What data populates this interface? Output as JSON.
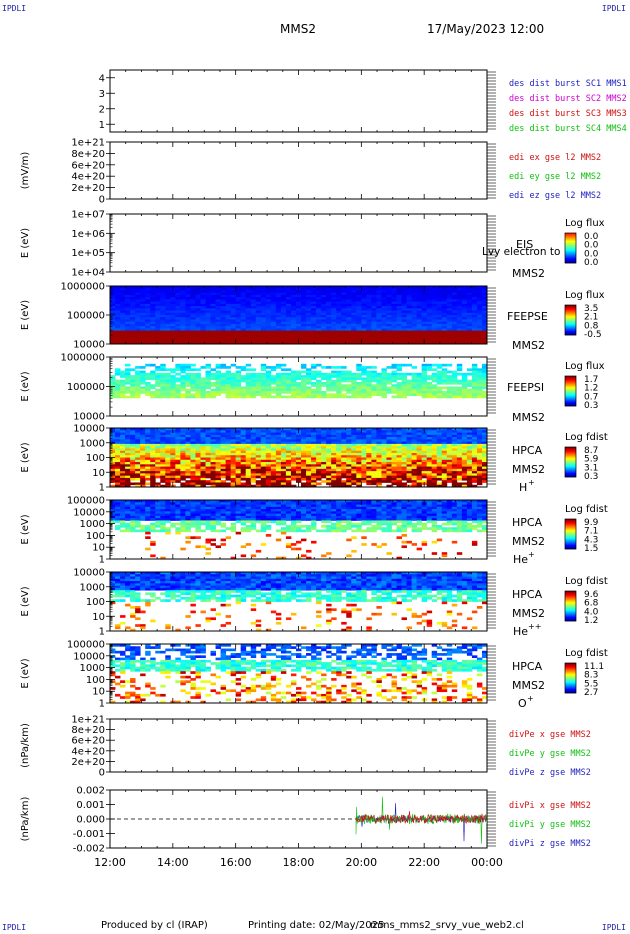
{
  "header": {
    "corner_tl": "IPDLI",
    "corner_tr": "IPDLI",
    "corner_bl": "IPDLI",
    "corner_br": "IPDLI",
    "spacecraft": "MMS2",
    "datetime": "17/May/2023 12:00"
  },
  "footer": {
    "produced": "Produced by cl (IRAP)",
    "printing": "Printing date: 02/May/2025",
    "file": "mms_mms2_srvy_vue_web2.cl"
  },
  "colors": {
    "mms1": "#1f1fc0",
    "mms2": "#d000d0",
    "mms3": "#d01010",
    "mms4": "#10c010",
    "x": "#d01010",
    "y": "#10c010",
    "z": "#1f1fc0"
  },
  "chart_data": [
    {
      "id": "burst",
      "type": "line",
      "ylabel": "",
      "yticks": [
        "1",
        "2",
        "3",
        "4"
      ],
      "ylim": [
        0.5,
        4.5
      ],
      "legend": [
        {
          "label": "des dist burst SC1 MMS1",
          "color": "#1f1fc0"
        },
        {
          "label": "des dist burst SC2 MMS2",
          "color": "#d000d0"
        },
        {
          "label": "des dist burst SC3 MMS3",
          "color": "#d01010"
        },
        {
          "label": "des dist burst SC4 MMS4",
          "color": "#10c010"
        }
      ]
    },
    {
      "id": "edi",
      "type": "line",
      "ylabel": "(mV/m)",
      "yticks": [
        "0",
        "2e+20",
        "4e+20",
        "6e+20",
        "8e+20",
        "1e+21"
      ],
      "ylim": [
        0,
        1e+21
      ],
      "zero_line": true,
      "legend": [
        {
          "label": "edi ex gse l2 MMS2",
          "color": "#d01010"
        },
        {
          "label": "edi ey gse l2 MMS2",
          "color": "#10c010"
        },
        {
          "label": "edi ez gse l2 MMS2",
          "color": "#1f1fc0"
        }
      ]
    },
    {
      "id": "eis",
      "type": "heatmap",
      "ylabel": "E (eV)",
      "yticks": [
        "1e+04",
        "1e+05",
        "1e+06",
        "1e+07"
      ],
      "log": true,
      "instrument": "EIS",
      "note": "Lvy electron to",
      "spacecraft": "MMS2",
      "colorbar_title": "Log flux",
      "colorbar_ticks": [
        "0.0",
        "0.0",
        "0.0",
        "0.0"
      ],
      "empty": true
    },
    {
      "id": "feepse",
      "type": "heatmap",
      "ylabel": "E (eV)",
      "yticks": [
        "10000",
        "100000",
        "1000000"
      ],
      "log": true,
      "instrument": "FEEPSE",
      "spacecraft": "MMS2",
      "colorbar_title": "Log flux",
      "colorbar_ticks": [
        "3.5",
        "2.1",
        "0.8",
        "-0.5"
      ]
    },
    {
      "id": "feepsi",
      "type": "heatmap",
      "ylabel": "E (eV)",
      "yticks": [
        "10000",
        "100000",
        "1000000"
      ],
      "log": true,
      "instrument": "FEEPSI",
      "spacecraft": "MMS2",
      "colorbar_title": "Log flux",
      "colorbar_ticks": [
        "1.7",
        "1.2",
        "0.7",
        "0.3"
      ]
    },
    {
      "id": "hpca_h",
      "type": "heatmap",
      "ylabel": "E (eV)",
      "yticks": [
        "1",
        "10",
        "100",
        "1000",
        "10000"
      ],
      "log": true,
      "instrument": "HPCA",
      "spacecraft": "MMS2",
      "species": "H",
      "charge": "+",
      "colorbar_title": "Log fdist",
      "colorbar_ticks": [
        "8.7",
        "5.9",
        "3.1",
        "0.3"
      ]
    },
    {
      "id": "hpca_he",
      "type": "heatmap",
      "ylabel": "E (eV)",
      "yticks": [
        "1",
        "10",
        "100",
        "1000",
        "10000",
        "100000"
      ],
      "log": true,
      "instrument": "HPCA",
      "spacecraft": "MMS2",
      "species": "He",
      "charge": "+",
      "colorbar_title": "Log fdist",
      "colorbar_ticks": [
        "9.9",
        "7.1",
        "4.3",
        "1.5"
      ]
    },
    {
      "id": "hpca_hepp",
      "type": "heatmap",
      "ylabel": "E (eV)",
      "yticks": [
        "1",
        "10",
        "100",
        "1000",
        "10000"
      ],
      "log": true,
      "instrument": "HPCA",
      "spacecraft": "MMS2",
      "species": "He",
      "charge": "++",
      "colorbar_title": "Log fdist",
      "colorbar_ticks": [
        "9.6",
        "6.8",
        "4.0",
        "1.2"
      ]
    },
    {
      "id": "hpca_o",
      "type": "heatmap",
      "ylabel": "E (eV)",
      "yticks": [
        "1",
        "10",
        "100",
        "1000",
        "10000",
        "100000"
      ],
      "log": true,
      "instrument": "HPCA",
      "spacecraft": "MMS2",
      "species": "O",
      "charge": "+",
      "colorbar_title": "Log fdist",
      "colorbar_ticks": [
        "11.1",
        "8.3",
        "5.5",
        "2.7"
      ]
    },
    {
      "id": "divpe",
      "type": "line",
      "ylabel": "(nPa/km)",
      "yticks": [
        "0",
        "2e+20",
        "4e+20",
        "6e+20",
        "8e+20",
        "1e+21"
      ],
      "ylim": [
        0,
        1e+21
      ],
      "zero_line": true,
      "legend": [
        {
          "label": "divPe x gse MMS2",
          "color": "#d01010"
        },
        {
          "label": "divPe y gse MMS2",
          "color": "#10c010"
        },
        {
          "label": "divPe z gse MMS2",
          "color": "#1f1fc0"
        }
      ]
    },
    {
      "id": "divpi",
      "type": "line",
      "ylabel": "(nPa/km)",
      "yticks": [
        "-0.002",
        "-0.001",
        "0.000",
        "0.001",
        "0.002"
      ],
      "ylim": [
        -0.002,
        0.002
      ],
      "zero_line": true,
      "data_start": "19:50",
      "legend": [
        {
          "label": "divPi x gse MMS2",
          "color": "#d01010"
        },
        {
          "label": "divPi y gse MMS2",
          "color": "#10c010"
        },
        {
          "label": "divPi z gse MMS2",
          "color": "#1f1fc0"
        }
      ]
    }
  ],
  "x_axis": {
    "ticks": [
      "12:00",
      "14:00",
      "16:00",
      "18:00",
      "20:00",
      "22:00",
      "00:00"
    ]
  }
}
